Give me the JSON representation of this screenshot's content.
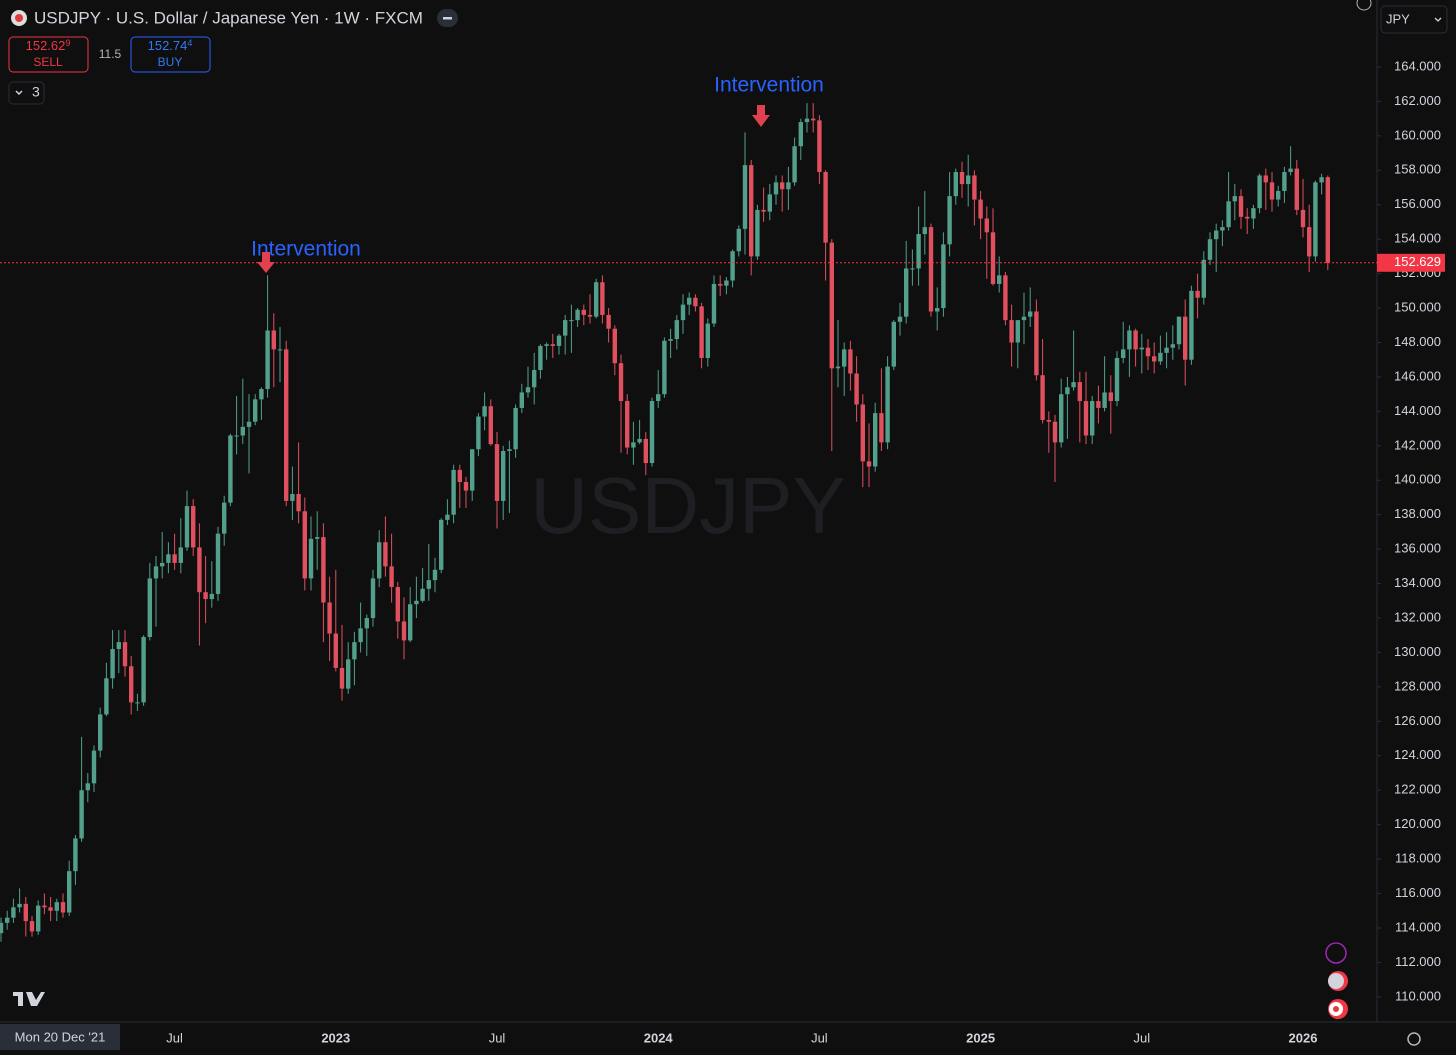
{
  "chart_data": {
    "type": "candlestick",
    "title": "USDJPY · U.S. Dollar / Japanese Yen · 1W · FXCM",
    "watermark": "USDJPY",
    "currency": "JPY",
    "indicator_count": "3",
    "sell": {
      "price": "152.62",
      "pip": "9",
      "label": "SELL"
    },
    "buy": {
      "price": "152.74",
      "pip": "4",
      "label": "BUY"
    },
    "spread": "11.5",
    "crosshair_date": "Mon 20 Dec '21",
    "annotations": [
      "Intervention",
      "Intervention"
    ],
    "last_price": 152.629,
    "up_color": "#52a08c",
    "down_color": "#e0505f",
    "last_price_color": "#f23645",
    "grid": false,
    "ylim": [
      108.54,
      167.89
    ],
    "yticks": [
      {
        "value": 110,
        "label": "110.000"
      },
      {
        "value": 112,
        "label": "112.000"
      },
      {
        "value": 114,
        "label": "114.000"
      },
      {
        "value": 116,
        "label": "116.000"
      },
      {
        "value": 118,
        "label": "118.000"
      },
      {
        "value": 120,
        "label": "120.000"
      },
      {
        "value": 122,
        "label": "122.000"
      },
      {
        "value": 124,
        "label": "124.000"
      },
      {
        "value": 126,
        "label": "126.000"
      },
      {
        "value": 128,
        "label": "128.000"
      },
      {
        "value": 130,
        "label": "130.000"
      },
      {
        "value": 132,
        "label": "132.000"
      },
      {
        "value": 134,
        "label": "134.000"
      },
      {
        "value": 136,
        "label": "136.000"
      },
      {
        "value": 138,
        "label": "138.000"
      },
      {
        "value": 140,
        "label": "140.000"
      },
      {
        "value": 142,
        "label": "142.000"
      },
      {
        "value": 144,
        "label": "144.000"
      },
      {
        "value": 146,
        "label": "146.000"
      },
      {
        "value": 148,
        "label": "148.000"
      },
      {
        "value": 150,
        "label": "150.000"
      },
      {
        "value": 152,
        "label": "152.000"
      },
      {
        "value": 154,
        "label": "154.000"
      },
      {
        "value": 156,
        "label": "156.000"
      },
      {
        "value": 158,
        "label": "158.000"
      },
      {
        "value": 160,
        "label": "160.000"
      },
      {
        "value": 162,
        "label": "162.000"
      },
      {
        "value": 164,
        "label": "164.000"
      }
    ],
    "xticks": [
      {
        "value": 28,
        "label": "Jul"
      },
      {
        "value": 54,
        "label": "2023"
      },
      {
        "value": 80,
        "label": "Jul"
      },
      {
        "value": 106,
        "label": "2024"
      },
      {
        "value": 132,
        "label": "Jul"
      },
      {
        "value": 158,
        "label": "2025"
      },
      {
        "value": 184,
        "label": "Jul"
      },
      {
        "value": 210,
        "label": "2026"
      }
    ],
    "candles": [
      [
        113.7,
        114.6,
        113.2,
        114.3
      ],
      [
        114.3,
        115.0,
        113.9,
        114.6
      ],
      [
        114.6,
        115.7,
        114.3,
        115.2
      ],
      [
        115.2,
        116.3,
        114.9,
        115.4
      ],
      [
        115.4,
        115.8,
        113.5,
        114.4
      ],
      [
        114.4,
        114.7,
        113.5,
        113.8
      ],
      [
        113.8,
        115.6,
        113.6,
        115.3
      ],
      [
        115.3,
        116.0,
        114.8,
        115.2
      ],
      [
        115.2,
        115.8,
        114.4,
        115.0
      ],
      [
        115.0,
        115.7,
        114.4,
        115.5
      ],
      [
        115.5,
        116.0,
        114.6,
        114.9
      ],
      [
        114.9,
        117.9,
        114.7,
        117.3
      ],
      [
        117.3,
        119.4,
        116.5,
        119.2
      ],
      [
        119.2,
        125.1,
        119.0,
        122.0
      ],
      [
        122.0,
        123.0,
        121.3,
        122.4
      ],
      [
        122.4,
        124.6,
        121.9,
        124.3
      ],
      [
        124.3,
        126.8,
        123.9,
        126.4
      ],
      [
        126.4,
        129.4,
        126.3,
        128.5
      ],
      [
        128.5,
        131.3,
        127.9,
        130.2
      ],
      [
        130.2,
        131.3,
        128.8,
        130.6
      ],
      [
        130.6,
        131.3,
        128.6,
        129.2
      ],
      [
        129.2,
        129.8,
        126.4,
        127.1
      ],
      [
        127.1,
        127.6,
        126.6,
        127.1
      ],
      [
        127.1,
        131.0,
        126.9,
        130.9
      ],
      [
        130.9,
        135.2,
        130.7,
        134.3
      ],
      [
        134.3,
        135.6,
        131.5,
        135.0
      ],
      [
        135.0,
        137.0,
        134.3,
        135.2
      ],
      [
        135.2,
        136.4,
        134.6,
        135.7
      ],
      [
        135.7,
        136.9,
        134.8,
        135.2
      ],
      [
        135.2,
        137.8,
        134.6,
        136.1
      ],
      [
        136.1,
        139.4,
        135.9,
        138.5
      ],
      [
        138.5,
        138.9,
        135.6,
        136.1
      ],
      [
        136.1,
        137.5,
        130.4,
        133.5
      ],
      [
        133.5,
        135.6,
        131.7,
        133.1
      ],
      [
        133.1,
        135.3,
        132.6,
        133.4
      ],
      [
        133.4,
        137.3,
        133.0,
        136.9
      ],
      [
        136.9,
        139.1,
        136.2,
        138.7
      ],
      [
        138.7,
        142.7,
        138.5,
        142.6
      ],
      [
        142.6,
        144.9,
        141.5,
        142.6
      ],
      [
        142.6,
        145.9,
        142.1,
        143.1
      ],
      [
        143.1,
        145.0,
        140.4,
        143.4
      ],
      [
        143.4,
        145.0,
        143.2,
        144.7
      ],
      [
        144.7,
        145.4,
        143.5,
        145.3
      ],
      [
        145.3,
        151.9,
        144.8,
        148.7
      ],
      [
        148.7,
        149.7,
        145.4,
        147.6
      ],
      [
        147.6,
        148.9,
        145.7,
        147.6
      ],
      [
        147.6,
        148.1,
        138.5,
        138.8
      ],
      [
        138.8,
        140.8,
        137.7,
        139.2
      ],
      [
        139.2,
        142.2,
        137.5,
        138.2
      ],
      [
        138.2,
        139.0,
        133.6,
        134.3
      ],
      [
        134.3,
        137.9,
        133.6,
        136.6
      ],
      [
        136.6,
        138.2,
        134.8,
        136.7
      ],
      [
        136.7,
        137.5,
        130.6,
        132.9
      ],
      [
        132.9,
        134.4,
        129.5,
        131.1
      ],
      [
        131.1,
        134.8,
        128.9,
        129.1
      ],
      [
        129.1,
        131.6,
        127.2,
        127.9
      ],
      [
        127.9,
        130.6,
        127.6,
        129.6
      ],
      [
        129.6,
        131.2,
        128.1,
        130.6
      ],
      [
        130.6,
        132.9,
        130.0,
        131.4
      ],
      [
        131.4,
        132.2,
        129.8,
        132.0
      ],
      [
        132.0,
        134.8,
        131.5,
        134.3
      ],
      [
        134.3,
        137.1,
        133.8,
        136.4
      ],
      [
        136.4,
        137.9,
        134.4,
        135.0
      ],
      [
        135.0,
        136.9,
        132.9,
        133.8
      ],
      [
        133.8,
        134.1,
        130.8,
        131.8
      ],
      [
        131.8,
        133.2,
        129.6,
        130.7
      ],
      [
        130.7,
        133.8,
        130.6,
        132.8
      ],
      [
        132.8,
        134.4,
        132.0,
        133.0
      ],
      [
        133.0,
        134.9,
        132.9,
        133.7
      ],
      [
        133.7,
        136.3,
        133.0,
        134.2
      ],
      [
        134.2,
        135.5,
        133.5,
        134.8
      ],
      [
        134.8,
        137.8,
        134.6,
        137.7
      ],
      [
        137.7,
        138.9,
        137.4,
        138.0
      ],
      [
        138.0,
        140.9,
        137.5,
        140.6
      ],
      [
        140.6,
        140.9,
        138.4,
        139.9
      ],
      [
        139.9,
        140.2,
        138.4,
        139.4
      ],
      [
        139.4,
        141.8,
        138.8,
        141.8
      ],
      [
        141.8,
        143.9,
        141.4,
        143.7
      ],
      [
        143.7,
        145.1,
        142.9,
        144.3
      ],
      [
        144.3,
        144.7,
        142.0,
        142.1
      ],
      [
        142.1,
        142.8,
        137.2,
        138.8
      ],
      [
        138.8,
        142.0,
        137.7,
        141.7
      ],
      [
        141.7,
        142.3,
        138.1,
        141.8
      ],
      [
        141.8,
        144.4,
        141.3,
        144.2
      ],
      [
        144.2,
        145.6,
        143.9,
        145.1
      ],
      [
        145.1,
        146.6,
        144.8,
        145.4
      ],
      [
        145.4,
        147.4,
        144.4,
        146.4
      ],
      [
        146.4,
        147.9,
        145.9,
        147.8
      ],
      [
        147.8,
        148.0,
        147.0,
        147.9
      ],
      [
        147.9,
        148.5,
        147.1,
        147.8
      ],
      [
        147.8,
        148.5,
        147.3,
        148.4
      ],
      [
        148.4,
        149.6,
        147.3,
        149.3
      ],
      [
        149.3,
        150.2,
        147.4,
        149.3
      ],
      [
        149.3,
        150.0,
        148.9,
        149.9
      ],
      [
        149.9,
        150.2,
        149.0,
        149.6
      ],
      [
        149.6,
        150.8,
        149.1,
        149.5
      ],
      [
        149.5,
        151.7,
        149.4,
        151.5
      ],
      [
        151.5,
        151.9,
        149.1,
        149.6
      ],
      [
        149.6,
        150.0,
        148.0,
        148.8
      ],
      [
        148.8,
        149.0,
        146.1,
        146.8
      ],
      [
        146.8,
        147.3,
        141.6,
        144.6
      ],
      [
        144.6,
        145.0,
        141.5,
        141.9
      ],
      [
        141.9,
        143.4,
        140.9,
        142.2
      ],
      [
        142.2,
        143.5,
        142.1,
        142.4
      ],
      [
        142.4,
        142.8,
        140.3,
        141.0
      ],
      [
        141.0,
        144.8,
        140.8,
        144.6
      ],
      [
        144.6,
        146.4,
        144.2,
        145.0
      ],
      [
        145.0,
        148.3,
        144.8,
        148.1
      ],
      [
        148.1,
        148.8,
        147.1,
        148.2
      ],
      [
        148.2,
        149.6,
        147.6,
        149.3
      ],
      [
        149.3,
        150.8,
        148.5,
        150.2
      ],
      [
        150.2,
        150.9,
        149.6,
        150.6
      ],
      [
        150.6,
        150.8,
        149.8,
        150.1
      ],
      [
        150.1,
        150.3,
        146.5,
        147.1
      ],
      [
        147.1,
        149.4,
        146.6,
        149.1
      ],
      [
        149.1,
        151.9,
        148.9,
        151.4
      ],
      [
        151.4,
        151.9,
        150.7,
        151.3
      ],
      [
        151.3,
        151.8,
        150.8,
        151.6
      ],
      [
        151.6,
        153.4,
        151.2,
        153.3
      ],
      [
        153.3,
        154.8,
        153.0,
        154.6
      ],
      [
        154.6,
        160.2,
        153.1,
        158.3
      ],
      [
        158.3,
        158.6,
        151.9,
        153.0
      ],
      [
        153.0,
        156.0,
        152.8,
        155.7
      ],
      [
        155.7,
        157.0,
        155.0,
        155.6
      ],
      [
        155.6,
        157.2,
        155.1,
        156.6
      ],
      [
        156.6,
        157.7,
        156.0,
        157.3
      ],
      [
        157.3,
        157.7,
        155.6,
        156.9
      ],
      [
        156.9,
        158.2,
        155.7,
        157.3
      ],
      [
        157.3,
        159.9,
        157.1,
        159.4
      ],
      [
        159.4,
        161.0,
        158.6,
        160.8
      ],
      [
        160.8,
        161.9,
        160.2,
        161.0
      ],
      [
        161.0,
        161.9,
        160.2,
        160.9
      ],
      [
        160.9,
        161.2,
        157.2,
        157.9
      ],
      [
        157.9,
        158.0,
        151.6,
        153.8
      ],
      [
        153.8,
        154.0,
        141.7,
        146.5
      ],
      [
        146.5,
        149.3,
        145.4,
        146.6
      ],
      [
        146.6,
        148.0,
        144.9,
        147.6
      ],
      [
        147.6,
        148.1,
        145.2,
        146.2
      ],
      [
        146.2,
        147.2,
        143.4,
        144.4
      ],
      [
        144.4,
        145.0,
        139.6,
        141.1
      ],
      [
        141.1,
        143.3,
        139.6,
        140.8
      ],
      [
        140.8,
        144.5,
        140.5,
        143.9
      ],
      [
        143.9,
        146.5,
        141.7,
        142.2
      ],
      [
        142.2,
        147.2,
        141.8,
        146.6
      ],
      [
        146.6,
        149.3,
        146.4,
        149.2
      ],
      [
        149.2,
        150.3,
        148.4,
        149.5
      ],
      [
        149.5,
        153.9,
        149.1,
        152.3
      ],
      [
        152.3,
        153.4,
        151.3,
        152.3
      ],
      [
        152.3,
        155.9,
        151.3,
        154.3
      ],
      [
        154.3,
        156.8,
        153.1,
        154.7
      ],
      [
        154.7,
        154.9,
        149.5,
        149.8
      ],
      [
        149.8,
        151.2,
        148.7,
        150.0
      ],
      [
        150.0,
        154.4,
        149.5,
        153.7
      ],
      [
        153.7,
        157.9,
        153.0,
        156.5
      ],
      [
        156.5,
        158.1,
        156.0,
        157.9
      ],
      [
        157.9,
        158.5,
        156.4,
        157.2
      ],
      [
        157.2,
        158.9,
        155.9,
        157.7
      ],
      [
        157.7,
        158.0,
        154.8,
        156.3
      ],
      [
        156.3,
        156.8,
        154.0,
        155.2
      ],
      [
        155.2,
        155.9,
        151.7,
        154.4
      ],
      [
        154.4,
        155.8,
        151.3,
        151.4
      ],
      [
        151.4,
        153.0,
        150.9,
        151.9
      ],
      [
        151.9,
        152.1,
        149.0,
        149.3
      ],
      [
        149.3,
        150.2,
        146.6,
        148.0
      ],
      [
        148.0,
        149.2,
        146.5,
        149.3
      ],
      [
        149.3,
        150.9,
        147.9,
        149.5
      ],
      [
        149.5,
        151.2,
        148.9,
        149.8
      ],
      [
        149.8,
        150.5,
        145.8,
        146.1
      ],
      [
        146.1,
        148.2,
        143.3,
        143.5
      ],
      [
        143.5,
        144.0,
        141.6,
        143.4
      ],
      [
        143.4,
        143.8,
        139.9,
        142.2
      ],
      [
        142.2,
        145.9,
        141.9,
        145.0
      ],
      [
        145.0,
        146.0,
        142.4,
        145.4
      ],
      [
        145.4,
        148.7,
        145.2,
        145.7
      ],
      [
        145.7,
        146.3,
        142.2,
        144.6
      ],
      [
        144.6,
        146.3,
        142.1,
        142.6
      ],
      [
        142.6,
        144.9,
        142.1,
        144.6
      ],
      [
        144.6,
        145.5,
        143.3,
        144.2
      ],
      [
        144.2,
        147.2,
        144.0,
        145.1
      ],
      [
        145.1,
        146.1,
        142.7,
        144.6
      ],
      [
        144.6,
        147.5,
        144.3,
        147.1
      ],
      [
        147.1,
        149.2,
        146.8,
        147.6
      ],
      [
        147.6,
        149.0,
        146.0,
        148.7
      ],
      [
        148.7,
        148.8,
        146.6,
        147.6
      ],
      [
        147.6,
        148.5,
        146.2,
        147.7
      ],
      [
        147.7,
        148.2,
        146.4,
        147.2
      ],
      [
        147.2,
        148.0,
        146.2,
        146.9
      ],
      [
        146.9,
        148.4,
        146.7,
        147.4
      ],
      [
        147.4,
        148.6,
        146.5,
        147.7
      ],
      [
        147.7,
        149.0,
        147.0,
        147.9
      ],
      [
        147.9,
        149.5,
        147.6,
        149.5
      ],
      [
        149.5,
        150.5,
        145.5,
        147.0
      ],
      [
        147.0,
        151.3,
        146.7,
        151.0
      ],
      [
        151.0,
        152.0,
        149.4,
        150.6
      ],
      [
        150.6,
        153.3,
        150.2,
        152.8
      ],
      [
        152.8,
        154.4,
        152.5,
        154.0
      ],
      [
        154.0,
        154.9,
        152.1,
        154.5
      ],
      [
        154.5,
        155.1,
        153.6,
        154.7
      ],
      [
        154.7,
        157.9,
        154.5,
        156.2
      ],
      [
        156.2,
        157.2,
        155.1,
        156.5
      ],
      [
        156.5,
        156.9,
        154.6,
        155.3
      ],
      [
        155.3,
        155.8,
        154.3,
        155.2
      ],
      [
        155.2,
        156.0,
        154.6,
        155.8
      ],
      [
        155.8,
        157.8,
        155.5,
        157.7
      ],
      [
        157.7,
        158.1,
        155.7,
        157.3
      ],
      [
        157.3,
        157.9,
        155.6,
        156.3
      ],
      [
        156.3,
        157.1,
        155.9,
        156.8
      ],
      [
        156.8,
        158.2,
        156.1,
        157.9
      ],
      [
        157.9,
        159.4,
        157.7,
        158.1
      ],
      [
        158.1,
        158.6,
        155.4,
        155.7
      ],
      [
        155.7,
        157.5,
        154.1,
        154.7
      ],
      [
        154.7,
        156.0,
        152.1,
        153.0
      ],
      [
        153.0,
        157.4,
        152.7,
        157.3
      ],
      [
        157.3,
        157.8,
        156.6,
        157.6
      ],
      [
        157.6,
        157.7,
        152.2,
        152.629
      ]
    ]
  }
}
